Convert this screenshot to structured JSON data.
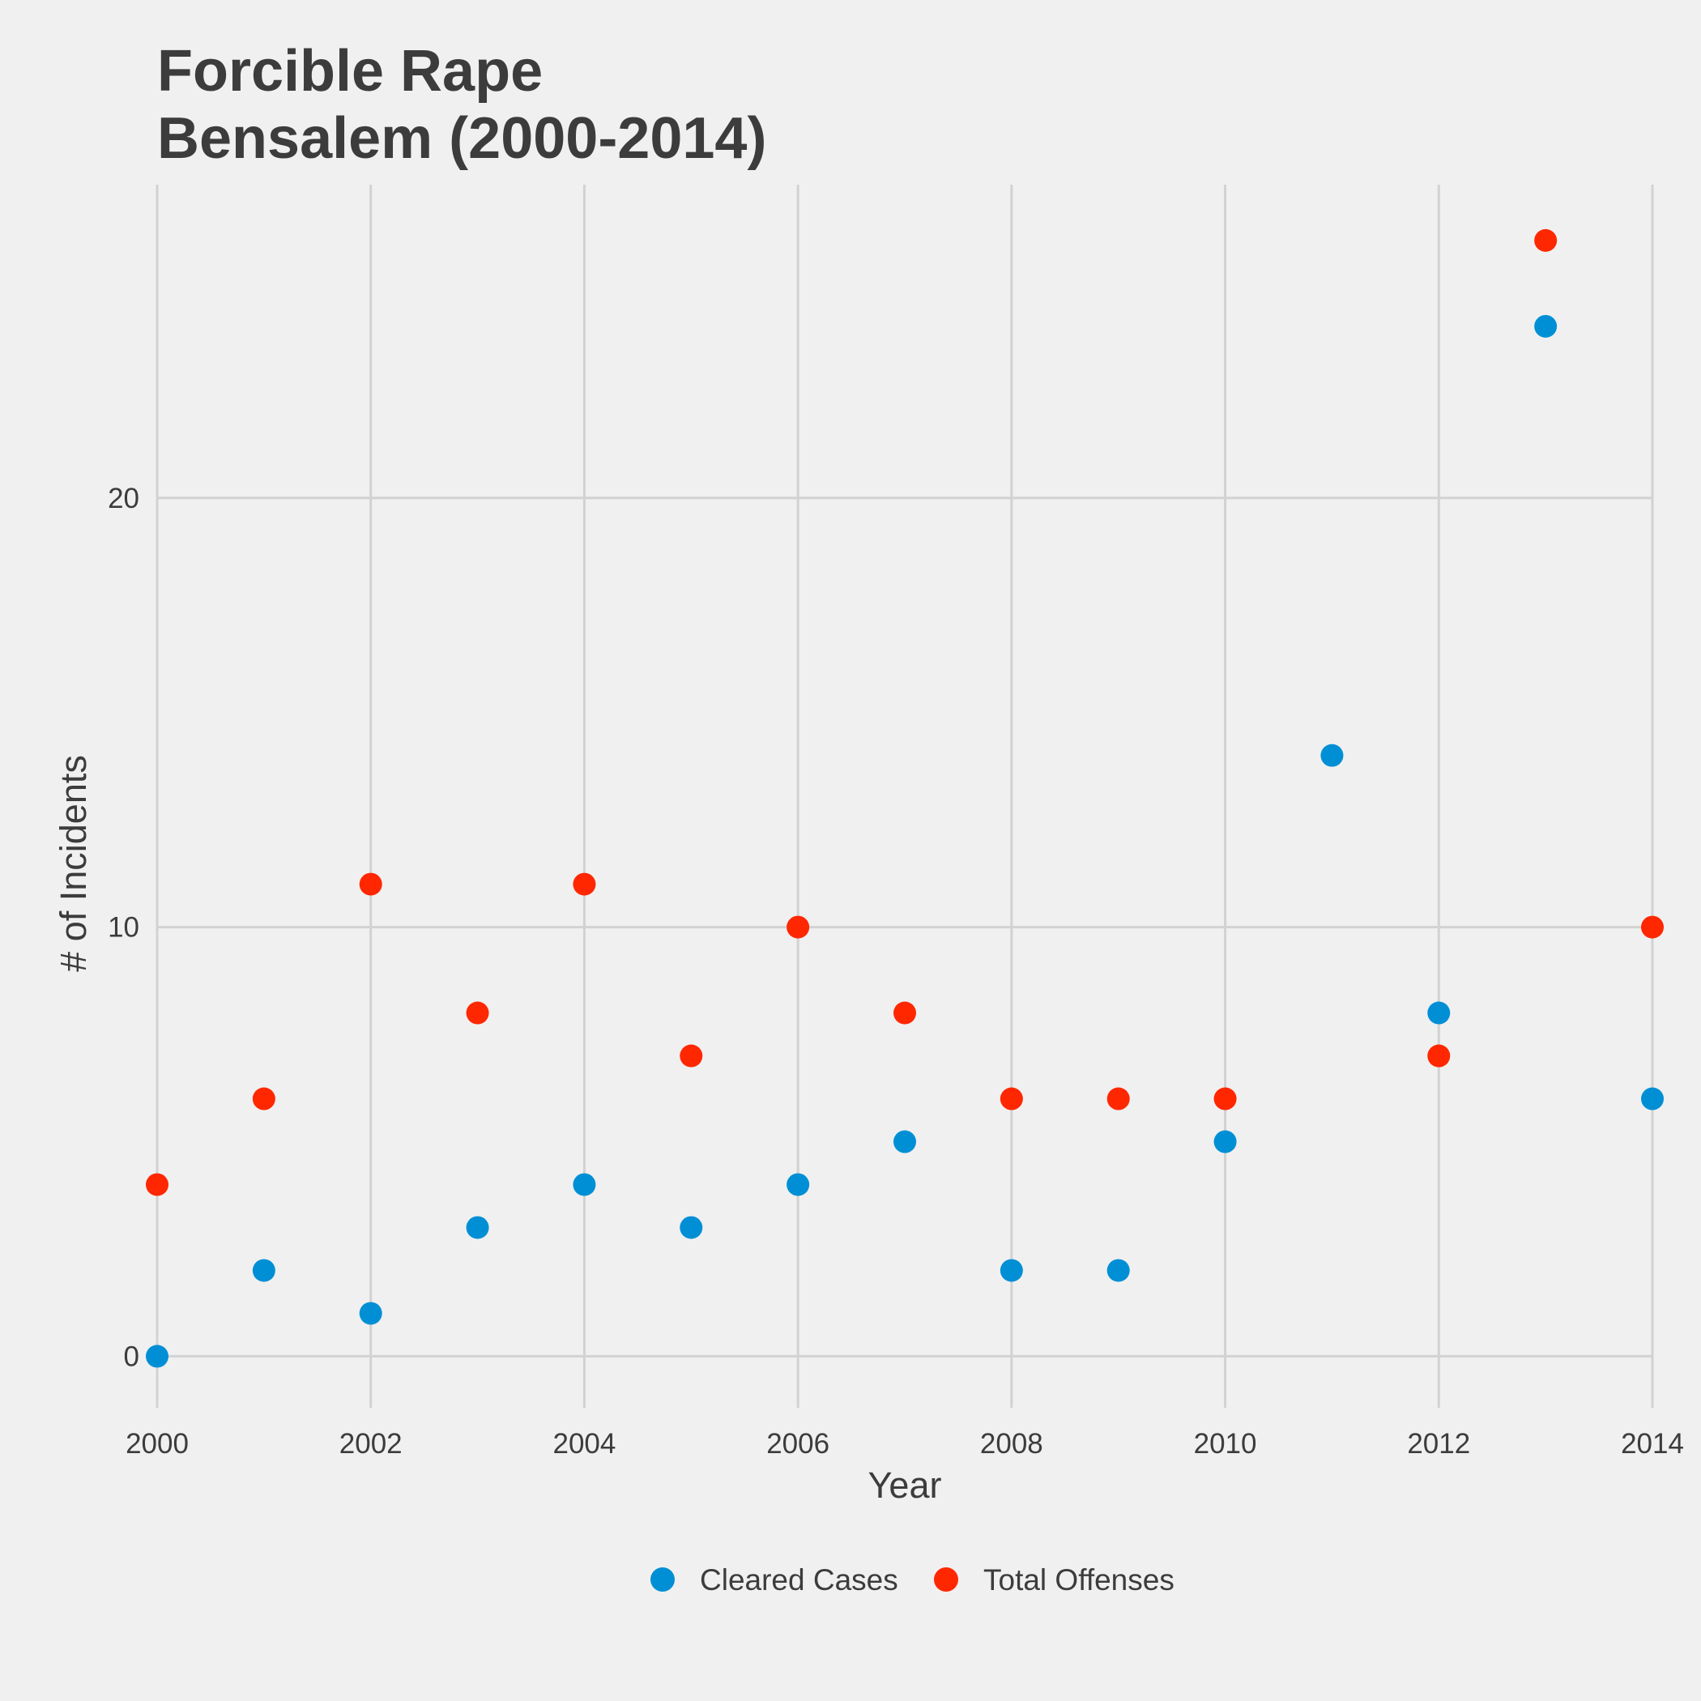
{
  "chart_data": {
    "type": "scatter",
    "title_lines": [
      "Forcible Rape",
      "Bensalem (2000-2014)"
    ],
    "xlabel": "Year",
    "ylabel": "# of Incidents",
    "xlim": [
      2000,
      2014
    ],
    "ylim": [
      -1.2,
      27.3
    ],
    "x_ticks": [
      "2000",
      "2002",
      "2004",
      "2006",
      "2008",
      "2010",
      "2012",
      "2014"
    ],
    "y_ticks": [
      "0",
      "10",
      "20"
    ],
    "grid": true,
    "legend_position": "bottom",
    "series": [
      {
        "name": "Cleared Cases",
        "color": "#008fd5",
        "points": [
          {
            "x": 2000,
            "y": 0
          },
          {
            "x": 2001,
            "y": 2
          },
          {
            "x": 2002,
            "y": 1
          },
          {
            "x": 2003,
            "y": 3
          },
          {
            "x": 2004,
            "y": 4
          },
          {
            "x": 2005,
            "y": 3
          },
          {
            "x": 2006,
            "y": 4
          },
          {
            "x": 2007,
            "y": 5
          },
          {
            "x": 2008,
            "y": 2
          },
          {
            "x": 2009,
            "y": 2
          },
          {
            "x": 2010,
            "y": 5
          },
          {
            "x": 2011,
            "y": 14
          },
          {
            "x": 2012,
            "y": 8
          },
          {
            "x": 2013,
            "y": 24
          },
          {
            "x": 2014,
            "y": 6
          }
        ]
      },
      {
        "name": "Total Offenses",
        "color": "#ff2700",
        "points": [
          {
            "x": 2000,
            "y": 4
          },
          {
            "x": 2001,
            "y": 6
          },
          {
            "x": 2002,
            "y": 11
          },
          {
            "x": 2003,
            "y": 8
          },
          {
            "x": 2004,
            "y": 11
          },
          {
            "x": 2005,
            "y": 7
          },
          {
            "x": 2006,
            "y": 10
          },
          {
            "x": 2007,
            "y": 8
          },
          {
            "x": 2008,
            "y": 6
          },
          {
            "x": 2009,
            "y": 6
          },
          {
            "x": 2010,
            "y": 6
          },
          {
            "x": 2012,
            "y": 7
          },
          {
            "x": 2013,
            "y": 26
          },
          {
            "x": 2014,
            "y": 10
          }
        ]
      }
    ]
  }
}
